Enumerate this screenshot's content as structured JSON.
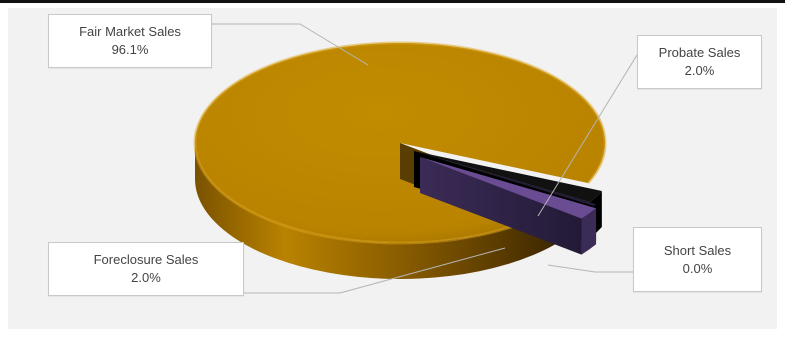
{
  "chart_data": {
    "type": "pie",
    "title": "",
    "categories": [
      "Fair Market Sales",
      "Probate Sales",
      "Short Sales",
      "Foreclosure Sales"
    ],
    "values": [
      96.1,
      2.0,
      0.0,
      2.0
    ],
    "series": [
      {
        "slices": [
          {
            "name": "Fair Market Sales",
            "value": 96.1,
            "label": "96.1%",
            "color": "#c08a00"
          },
          {
            "name": "Probate Sales",
            "value": 2.0,
            "label": "2.0%",
            "color": "#1a1a1a"
          },
          {
            "name": "Short Sales",
            "value": 0.0,
            "label": "0.0%",
            "color": "#2a2040"
          },
          {
            "name": "Foreclosure Sales",
            "value": 2.0,
            "label": "2.0%",
            "color": "#6a4c93"
          }
        ]
      }
    ],
    "style": "3d-pie-exploded",
    "legend": "none",
    "background": "#f2f2f2"
  }
}
